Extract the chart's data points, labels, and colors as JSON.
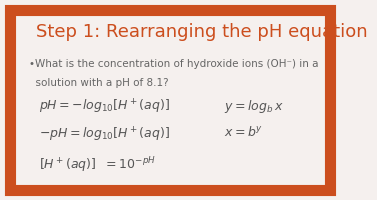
{
  "bg_color": "#f5f0ee",
  "border_color": "#cc4e1e",
  "border_width": 8,
  "title": "Step 1: Rearranging the pH equation",
  "title_color": "#cc4e1e",
  "title_fontsize": 13,
  "bullet_text1": "•What is the concentration of hydroxide ions (OH⁻) in a",
  "bullet_text2": "  solution with a pH of 8.1?",
  "bullet_color": "#666666",
  "bullet_fontsize": 7.5,
  "eq1": "$pH = -log_{10}[H^+(aq)]$",
  "eq2": "$-pH = log_{10}[H^+(aq)]$",
  "eq3": "$[H^+(aq)]\\ \\ = 10^{-pH}$",
  "eq_right1": "$y = log_b\\,x$",
  "eq_right2": "$x = b^y$",
  "eq_color": "#555555",
  "eq_fontsize": 9
}
